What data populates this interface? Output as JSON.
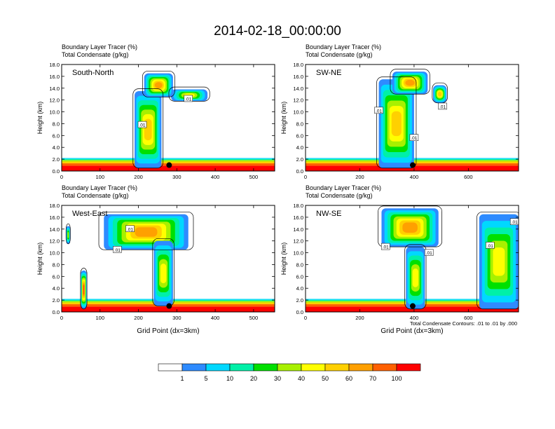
{
  "figure": {
    "title": "2014-02-18_00:00:00",
    "contour_note": "Total Condensate Contours: .01 to .01 by .000"
  },
  "colorbar": {
    "labels": [
      "1",
      "5",
      "10",
      "20",
      "30",
      "40",
      "50",
      "60",
      "70",
      "100"
    ],
    "colors": [
      "#ffffff",
      "#2e8bff",
      "#00d8ff",
      "#00f0a8",
      "#00e000",
      "#a8f000",
      "#ffff00",
      "#ffd000",
      "#ffa000",
      "#ff6000",
      "#ff0000"
    ]
  },
  "chart_data": [
    {
      "type": "heatmap",
      "panel_label": "South-North",
      "title_line1": "Boundary Layer Tracer   (%)",
      "title_line2": "Total Condensate   (g/kg)",
      "xlabel": "",
      "ylabel": "Height (km)",
      "xlim": [
        0,
        555
      ],
      "ylim": [
        0,
        18
      ],
      "x_ticks": [
        0,
        100,
        200,
        300,
        400,
        500
      ],
      "y_ticks": [
        0,
        2,
        4,
        6,
        8,
        10,
        12,
        14,
        16,
        18
      ],
      "y_tick_labels": [
        "0.0",
        "2.0",
        "4.0",
        "6.0",
        "8.0",
        "10.0",
        "12.0",
        "14.0",
        "16.0",
        "18.0"
      ],
      "marker": {
        "x": 280,
        "y": 1.0
      },
      "contour_labels": [
        {
          "text": ".01",
          "x": 330,
          "y": 12.2
        },
        {
          "text": ".01",
          "x": 210,
          "y": 7.8
        }
      ],
      "tracer_regions": [
        {
          "x": [
            190,
            260
          ],
          "y": [
            0.5,
            13.5
          ],
          "max_value": 50
        },
        {
          "x": [
            215,
            290
          ],
          "y": [
            12.5,
            16.5
          ],
          "max_value": 60
        },
        {
          "x": [
            285,
            380
          ],
          "y": [
            11.8,
            13.8
          ],
          "max_value": 40
        }
      ]
    },
    {
      "type": "heatmap",
      "panel_label": "SW-NE",
      "title_line1": "Boundary Layer Tracer   (%)",
      "title_line2": "Total Condensate   (g/kg)",
      "xlabel": "",
      "ylabel": "Height (km)",
      "xlim": [
        0,
        785
      ],
      "ylim": [
        0,
        18
      ],
      "x_ticks": [
        0,
        200,
        400,
        600
      ],
      "y_ticks": [
        0,
        2,
        4,
        6,
        8,
        10,
        12,
        14,
        16,
        18
      ],
      "y_tick_labels": [
        "0.0",
        "2.0",
        "4.0",
        "6.0",
        "8.0",
        "10.0",
        "12.0",
        "14.0",
        "16.0",
        "18.0"
      ],
      "marker": {
        "x": 395,
        "y": 1.0
      },
      "contour_labels": [
        {
          "text": ".01",
          "x": 270,
          "y": 10.2
        },
        {
          "text": ".01",
          "x": 505,
          "y": 10.9
        },
        {
          "text": ".01",
          "x": 400,
          "y": 5.6
        }
      ],
      "tracer_regions": [
        {
          "x": [
            270,
            400
          ],
          "y": [
            0.5,
            15.5
          ],
          "max_value": 50
        },
        {
          "x": [
            320,
            450
          ],
          "y": [
            13.0,
            16.8
          ],
          "max_value": 60
        },
        {
          "x": [
            470,
            520
          ],
          "y": [
            11.5,
            14.5
          ],
          "max_value": 50
        }
      ]
    },
    {
      "type": "heatmap",
      "panel_label": "West-East",
      "title_line1": "Boundary Layer Tracer   (%)",
      "title_line2": "Total Condensate   (g/kg)",
      "xlabel": "Grid Point (dx=3km)",
      "ylabel": "Height (km)",
      "xlim": [
        0,
        555
      ],
      "ylim": [
        0,
        18
      ],
      "x_ticks": [
        0,
        100,
        200,
        300,
        400,
        500
      ],
      "y_ticks": [
        0,
        2,
        4,
        6,
        8,
        10,
        12,
        14,
        16,
        18
      ],
      "y_tick_labels": [
        "0.0",
        "2.0",
        "4.0",
        "6.0",
        "8.0",
        "10.0",
        "12.0",
        "14.0",
        "16.0",
        "18.0"
      ],
      "marker": {
        "x": 280,
        "y": 1.0
      },
      "contour_labels": [
        {
          "text": ".01",
          "x": 178,
          "y": 14.0
        },
        {
          "text": ".01",
          "x": 145,
          "y": 10.5
        }
      ],
      "tracer_regions": [
        {
          "x": [
            110,
            330
          ],
          "y": [
            10.5,
            16.5
          ],
          "max_value": 60
        },
        {
          "x": [
            240,
            290
          ],
          "y": [
            1.0,
            12.0
          ],
          "max_value": 40
        },
        {
          "x": [
            50,
            65
          ],
          "y": [
            0.5,
            7.0
          ],
          "max_value": 70
        },
        {
          "x": [
            12,
            22
          ],
          "y": [
            11.5,
            14.5
          ],
          "max_value": 30
        }
      ]
    },
    {
      "type": "heatmap",
      "panel_label": "NW-SE",
      "title_line1": "Boundary Layer Tracer   (%)",
      "title_line2": "Total Condensate   (g/kg)",
      "xlabel": "Grid Point (dx=3km)",
      "ylabel": "Height (km)",
      "xlim": [
        0,
        785
      ],
      "ylim": [
        0,
        18
      ],
      "x_ticks": [
        0,
        200,
        400,
        600
      ],
      "y_ticks": [
        0,
        2,
        4,
        6,
        8,
        10,
        12,
        14,
        16,
        18
      ],
      "y_tick_labels": [
        "0.0",
        "2.0",
        "4.0",
        "6.0",
        "8.0",
        "10.0",
        "12.0",
        "14.0",
        "16.0",
        "18.0"
      ],
      "marker": {
        "x": 395,
        "y": 1.0
      },
      "contour_labels": [
        {
          "text": ".01",
          "x": 295,
          "y": 11.0
        },
        {
          "text": ".01",
          "x": 455,
          "y": 10.0
        },
        {
          "text": ".01",
          "x": 680,
          "y": 11.2
        },
        {
          "text": ".01",
          "x": 770,
          "y": 15.2
        }
      ],
      "tracer_regions": [
        {
          "x": [
            280,
            490
          ],
          "y": [
            11.0,
            17.5
          ],
          "max_value": 60
        },
        {
          "x": [
            370,
            440
          ],
          "y": [
            0.5,
            11.0
          ],
          "max_value": 40
        },
        {
          "x": [
            640,
            785
          ],
          "y": [
            0.5,
            16.5
          ],
          "max_value": 40
        }
      ]
    }
  ]
}
